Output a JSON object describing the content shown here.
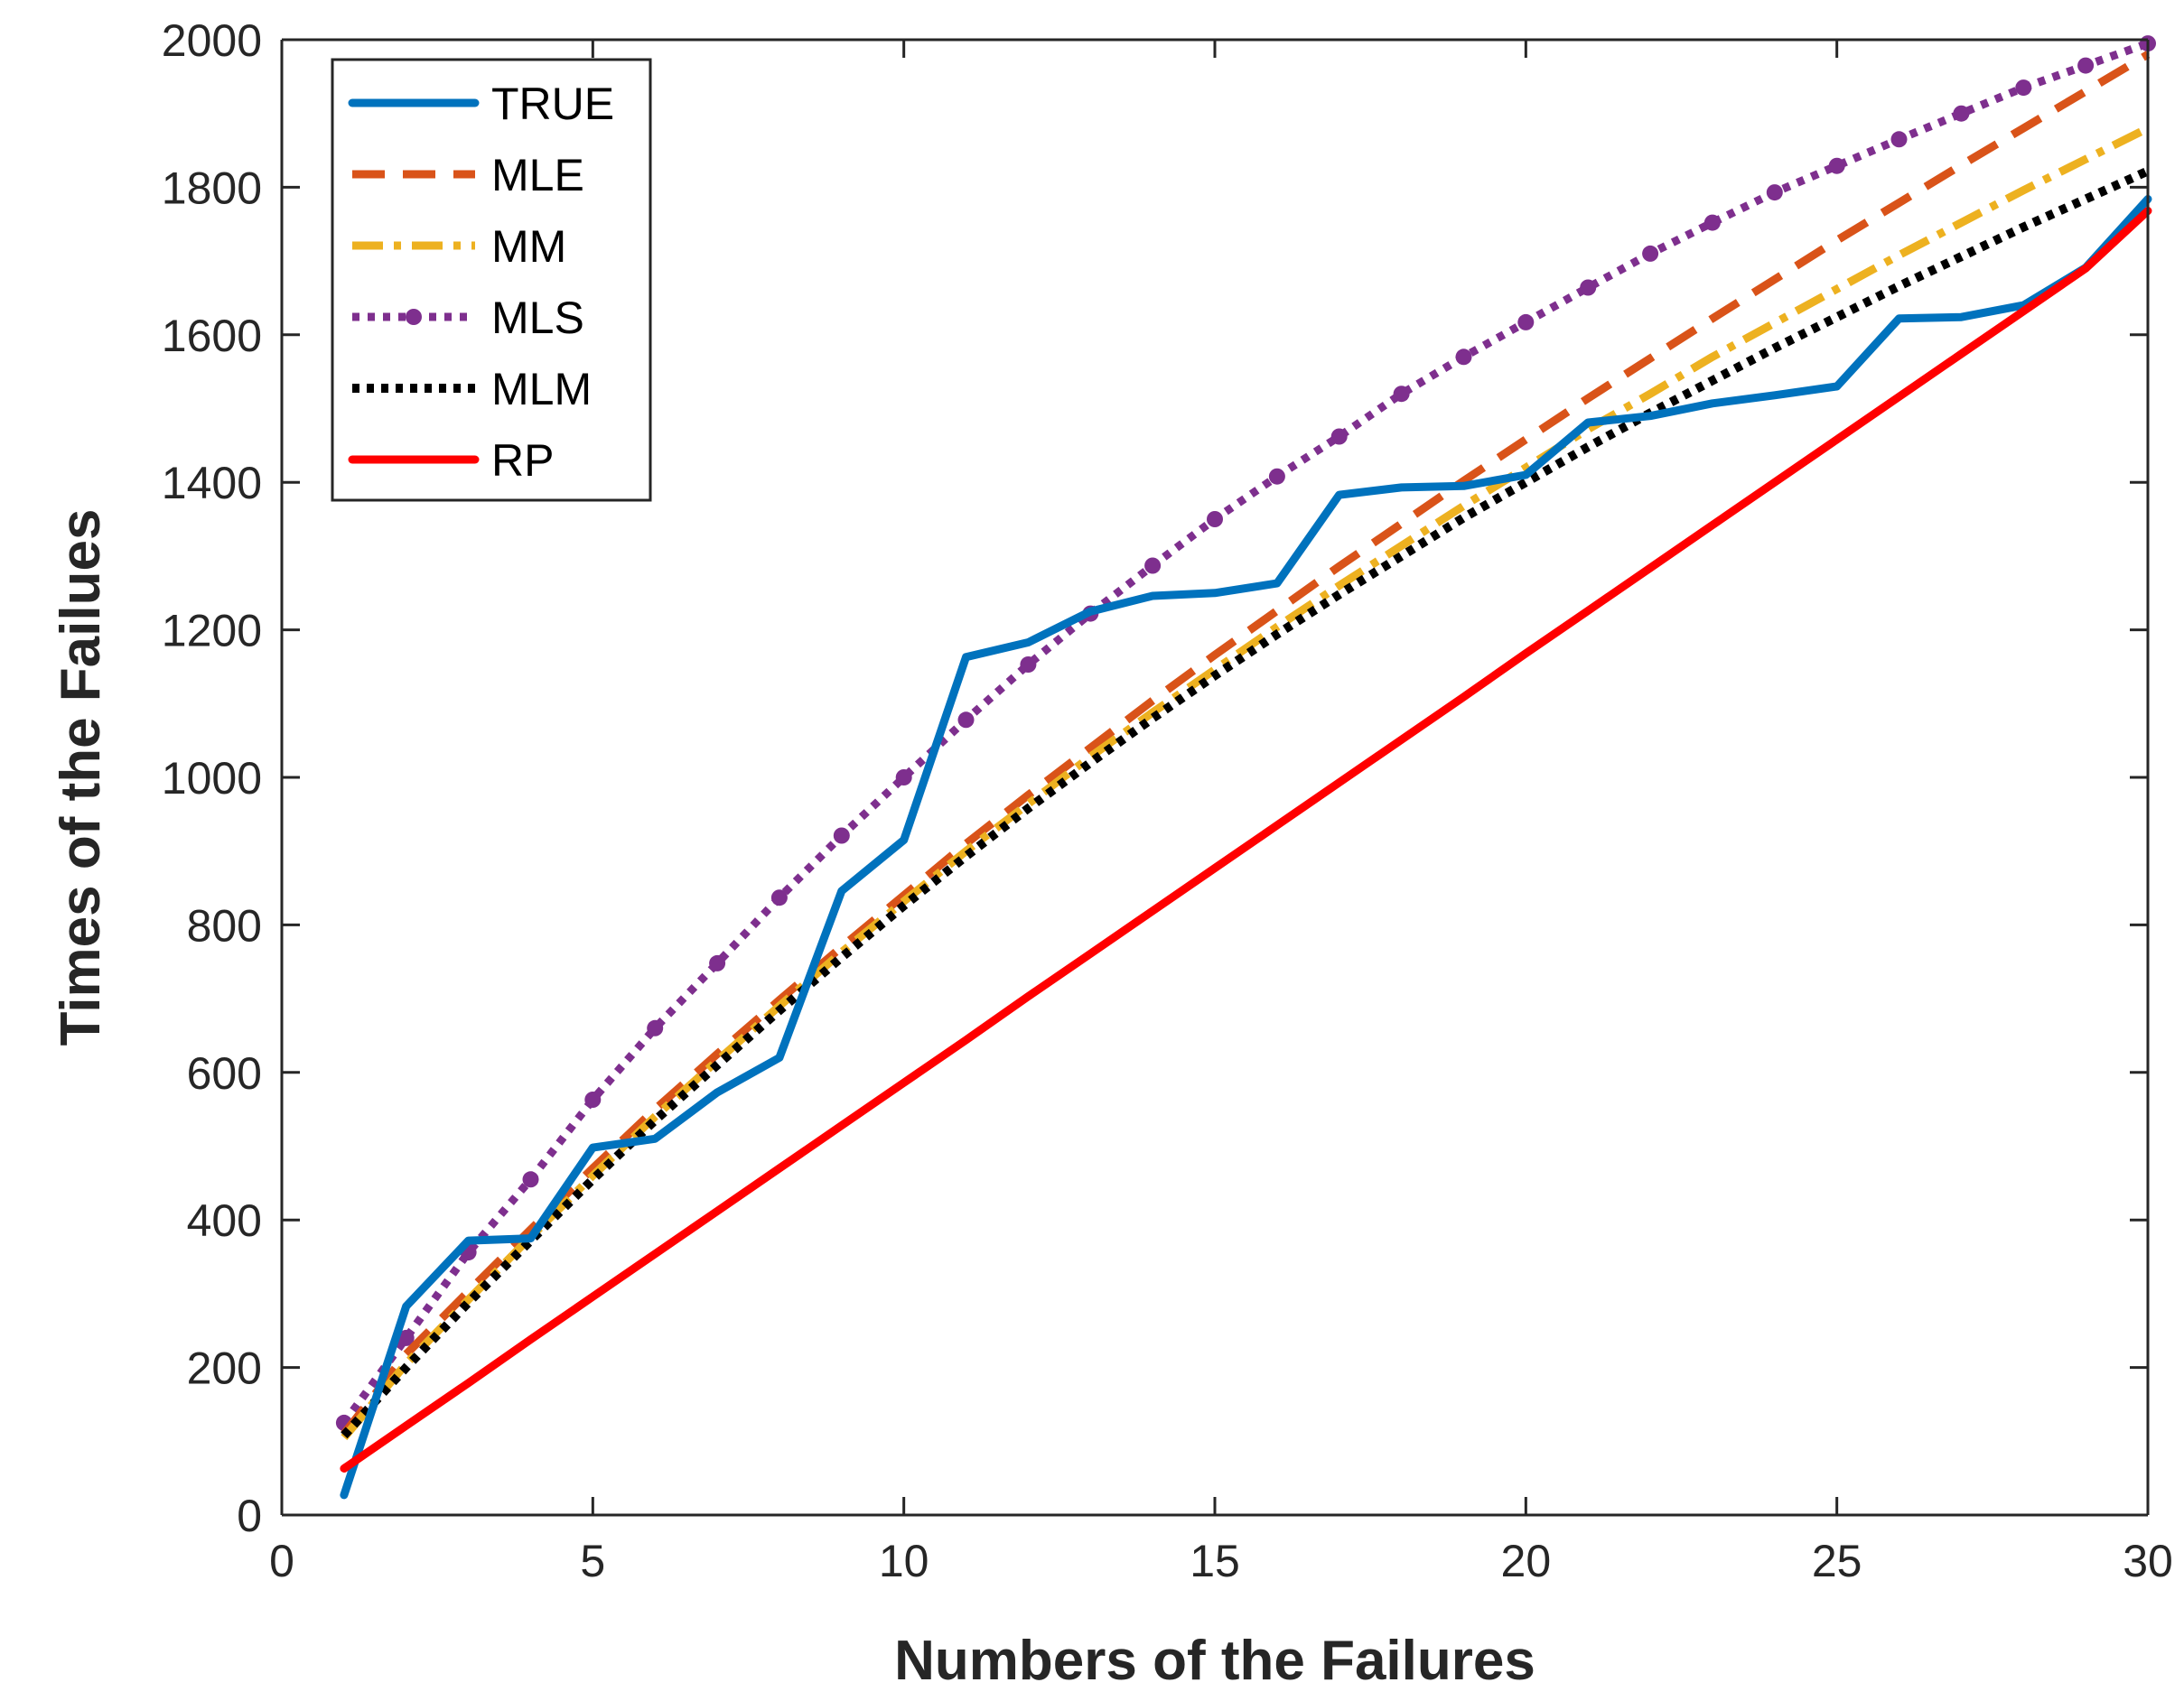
{
  "chart_data": {
    "type": "line",
    "title": "",
    "xlabel": "Numbers of the Failures",
    "ylabel": "Times of the Failues",
    "xlim": [
      0,
      30
    ],
    "ylim": [
      0,
      2000
    ],
    "xticks": [
      0,
      5,
      10,
      15,
      20,
      25,
      30
    ],
    "yticks": [
      0,
      200,
      400,
      600,
      800,
      1000,
      1200,
      1400,
      1600,
      1800,
      2000
    ],
    "grid": false,
    "legend_position": "top-left",
    "x": [
      1,
      2,
      3,
      4,
      5,
      6,
      7,
      8,
      9,
      10,
      11,
      12,
      13,
      14,
      15,
      16,
      17,
      18,
      19,
      20,
      21,
      22,
      23,
      24,
      25,
      26,
      27,
      28,
      29,
      30
    ],
    "series": [
      {
        "name": "TRUE",
        "color": "#0072BD",
        "style": "solid",
        "values": [
          27,
          283,
          372,
          375,
          498,
          510,
          573,
          620,
          846,
          915,
          1163,
          1183,
          1225,
          1246,
          1250,
          1263,
          1383,
          1393,
          1395,
          1410,
          1481,
          1490,
          1507,
          1518,
          1530,
          1622,
          1624,
          1640,
          1691,
          1784
        ]
      },
      {
        "name": "MLE",
        "color": "#D95319",
        "style": "dashed",
        "values": [
          110,
          218,
          303,
          387,
          470,
          550,
          625,
          698,
          770,
          840,
          910,
          976,
          1040,
          1104,
          1166,
          1226,
          1286,
          1344,
          1402,
          1458,
          1514,
          1568,
          1622,
          1675,
          1728,
          1779,
          1830,
          1880,
          1930,
          1980
        ]
      },
      {
        "name": "MM",
        "color": "#EDB120",
        "style": "dashdot",
        "values": [
          105,
          205,
          292,
          377,
          460,
          540,
          616,
          690,
          763,
          832,
          900,
          964,
          1028,
          1088,
          1146,
          1204,
          1260,
          1314,
          1368,
          1420,
          1472,
          1520,
          1570,
          1616,
          1662,
          1708,
          1752,
          1796,
          1838,
          1880
        ]
      },
      {
        "name": "MLS",
        "color": "#7E2F8E",
        "style": "dotted-marker",
        "values": [
          125,
          240,
          356,
          455,
          563,
          660,
          748,
          837,
          921,
          1000,
          1078,
          1153,
          1222,
          1287,
          1350,
          1408,
          1462,
          1520,
          1570,
          1617,
          1664,
          1710,
          1752,
          1793,
          1829,
          1865,
          1900,
          1935,
          1965,
          1995
        ]
      },
      {
        "name": "MLM",
        "color": "#000000",
        "style": "dotted",
        "values": [
          108,
          200,
          288,
          372,
          455,
          535,
          610,
          684,
          756,
          826,
          893,
          958,
          1020,
          1080,
          1138,
          1194,
          1248,
          1300,
          1352,
          1400,
          1448,
          1494,
          1538,
          1582,
          1624,
          1666,
          1706,
          1746,
          1784,
          1822
        ]
      },
      {
        "name": "RP",
        "color": "#FF0000",
        "style": "solid",
        "values": [
          63,
          121,
          179,
          238,
          296,
          354,
          412,
          470,
          528,
          586,
          644,
          703,
          761,
          819,
          877,
          935,
          993,
          1051,
          1109,
          1168,
          1226,
          1284,
          1342,
          1400,
          1458,
          1516,
          1574,
          1632,
          1690,
          1768
        ]
      }
    ]
  }
}
